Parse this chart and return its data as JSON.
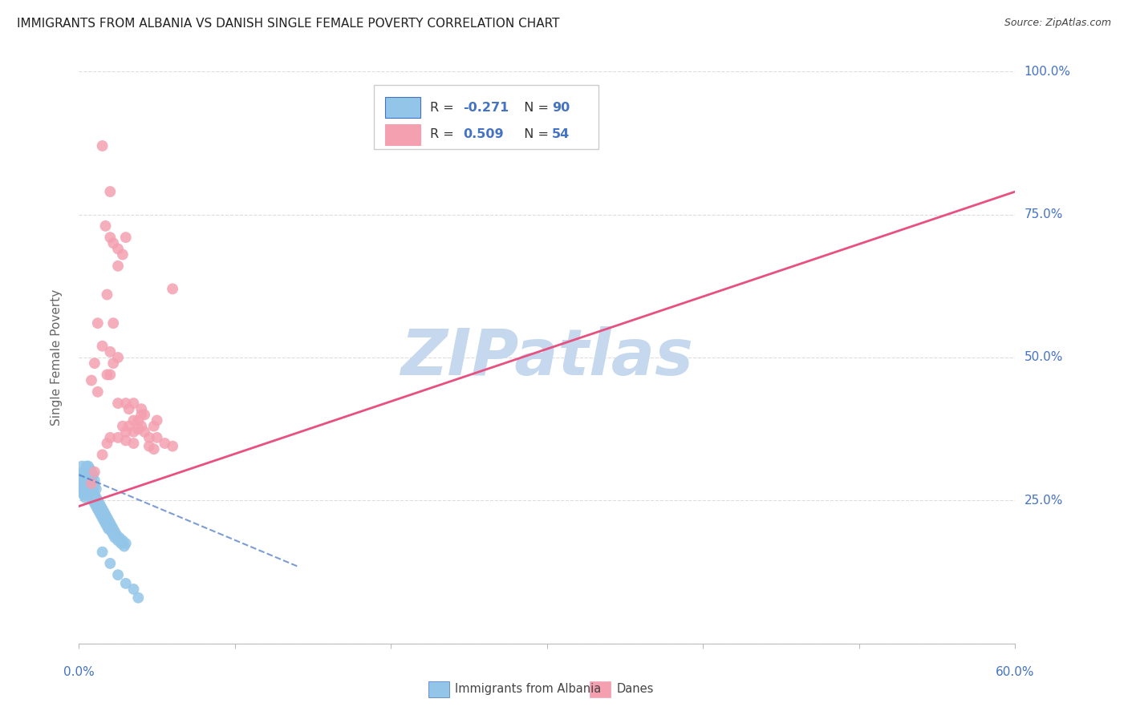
{
  "title": "IMMIGRANTS FROM ALBANIA VS DANISH SINGLE FEMALE POVERTY CORRELATION CHART",
  "source": "Source: ZipAtlas.com",
  "ylabel": "Single Female Poverty",
  "xlim": [
    0.0,
    0.6
  ],
  "ylim": [
    0.0,
    1.0
  ],
  "color_albania": "#92C5E8",
  "color_danes": "#F4A0B0",
  "color_blue": "#4472C4",
  "color_title": "#222222",
  "watermark_color": "#C5D8EE",
  "grid_color": "#DDDDDD",
  "background_color": "#FFFFFF",
  "albania_scatter": [
    [
      0.002,
      0.285
    ],
    [
      0.003,
      0.295
    ],
    [
      0.003,
      0.28
    ],
    [
      0.004,
      0.29
    ],
    [
      0.004,
      0.275
    ],
    [
      0.005,
      0.285
    ],
    [
      0.005,
      0.27
    ],
    [
      0.005,
      0.305
    ],
    [
      0.006,
      0.28
    ],
    [
      0.006,
      0.265
    ],
    [
      0.006,
      0.3
    ],
    [
      0.007,
      0.275
    ],
    [
      0.007,
      0.26
    ],
    [
      0.007,
      0.29
    ],
    [
      0.008,
      0.27
    ],
    [
      0.008,
      0.255
    ],
    [
      0.008,
      0.285
    ],
    [
      0.009,
      0.265
    ],
    [
      0.009,
      0.25
    ],
    [
      0.009,
      0.28
    ],
    [
      0.01,
      0.26
    ],
    [
      0.01,
      0.245
    ],
    [
      0.01,
      0.275
    ],
    [
      0.011,
      0.255
    ],
    [
      0.011,
      0.24
    ],
    [
      0.012,
      0.25
    ],
    [
      0.012,
      0.235
    ],
    [
      0.013,
      0.245
    ],
    [
      0.013,
      0.23
    ],
    [
      0.014,
      0.24
    ],
    [
      0.014,
      0.225
    ],
    [
      0.015,
      0.235
    ],
    [
      0.015,
      0.22
    ],
    [
      0.016,
      0.23
    ],
    [
      0.016,
      0.215
    ],
    [
      0.017,
      0.225
    ],
    [
      0.017,
      0.21
    ],
    [
      0.018,
      0.22
    ],
    [
      0.018,
      0.205
    ],
    [
      0.019,
      0.215
    ],
    [
      0.019,
      0.2
    ],
    [
      0.02,
      0.21
    ],
    [
      0.02,
      0.2
    ],
    [
      0.021,
      0.205
    ],
    [
      0.021,
      0.195
    ],
    [
      0.022,
      0.2
    ],
    [
      0.022,
      0.19
    ],
    [
      0.023,
      0.195
    ],
    [
      0.023,
      0.185
    ],
    [
      0.024,
      0.19
    ],
    [
      0.025,
      0.18
    ],
    [
      0.026,
      0.185
    ],
    [
      0.027,
      0.175
    ],
    [
      0.028,
      0.18
    ],
    [
      0.029,
      0.17
    ],
    [
      0.03,
      0.175
    ],
    [
      0.002,
      0.31
    ],
    [
      0.003,
      0.3
    ],
    [
      0.004,
      0.295
    ],
    [
      0.005,
      0.31
    ],
    [
      0.006,
      0.295
    ],
    [
      0.006,
      0.31
    ],
    [
      0.007,
      0.305
    ],
    [
      0.007,
      0.295
    ],
    [
      0.008,
      0.3
    ],
    [
      0.009,
      0.295
    ],
    [
      0.01,
      0.285
    ],
    [
      0.011,
      0.27
    ],
    [
      0.004,
      0.285
    ],
    [
      0.005,
      0.295
    ],
    [
      0.003,
      0.27
    ],
    [
      0.002,
      0.275
    ],
    [
      0.001,
      0.29
    ],
    [
      0.001,
      0.27
    ],
    [
      0.002,
      0.265
    ],
    [
      0.003,
      0.26
    ],
    [
      0.004,
      0.265
    ],
    [
      0.004,
      0.255
    ],
    [
      0.003,
      0.285
    ],
    [
      0.002,
      0.295
    ],
    [
      0.005,
      0.265
    ],
    [
      0.006,
      0.285
    ],
    [
      0.007,
      0.28
    ],
    [
      0.008,
      0.29
    ],
    [
      0.03,
      0.105
    ],
    [
      0.035,
      0.095
    ],
    [
      0.038,
      0.08
    ],
    [
      0.015,
      0.16
    ],
    [
      0.02,
      0.14
    ],
    [
      0.025,
      0.12
    ]
  ],
  "danes_scatter": [
    [
      0.015,
      0.87
    ],
    [
      0.02,
      0.79
    ],
    [
      0.017,
      0.73
    ],
    [
      0.02,
      0.71
    ],
    [
      0.022,
      0.7
    ],
    [
      0.025,
      0.69
    ],
    [
      0.028,
      0.68
    ],
    [
      0.03,
      0.71
    ],
    [
      0.025,
      0.66
    ],
    [
      0.018,
      0.61
    ],
    [
      0.022,
      0.56
    ],
    [
      0.012,
      0.56
    ],
    [
      0.015,
      0.52
    ],
    [
      0.02,
      0.51
    ],
    [
      0.01,
      0.49
    ],
    [
      0.022,
      0.49
    ],
    [
      0.025,
      0.5
    ],
    [
      0.008,
      0.46
    ],
    [
      0.018,
      0.47
    ],
    [
      0.02,
      0.47
    ],
    [
      0.012,
      0.44
    ],
    [
      0.03,
      0.42
    ],
    [
      0.025,
      0.42
    ],
    [
      0.035,
      0.42
    ],
    [
      0.032,
      0.41
    ],
    [
      0.04,
      0.41
    ],
    [
      0.04,
      0.4
    ],
    [
      0.038,
      0.39
    ],
    [
      0.035,
      0.39
    ],
    [
      0.042,
      0.4
    ],
    [
      0.028,
      0.38
    ],
    [
      0.03,
      0.37
    ],
    [
      0.035,
      0.37
    ],
    [
      0.04,
      0.38
    ],
    [
      0.045,
      0.36
    ],
    [
      0.042,
      0.37
    ],
    [
      0.048,
      0.38
    ],
    [
      0.032,
      0.38
    ],
    [
      0.038,
      0.375
    ],
    [
      0.045,
      0.345
    ],
    [
      0.05,
      0.39
    ],
    [
      0.05,
      0.36
    ],
    [
      0.055,
      0.35
    ],
    [
      0.06,
      0.345
    ],
    [
      0.048,
      0.34
    ],
    [
      0.035,
      0.35
    ],
    [
      0.03,
      0.355
    ],
    [
      0.025,
      0.36
    ],
    [
      0.02,
      0.36
    ],
    [
      0.018,
      0.35
    ],
    [
      0.015,
      0.33
    ],
    [
      0.01,
      0.3
    ],
    [
      0.008,
      0.28
    ],
    [
      0.06,
      0.62
    ]
  ],
  "albania_line_x": [
    0.0,
    0.14
  ],
  "albania_line_y": [
    0.295,
    0.135
  ],
  "danes_line_x": [
    0.0,
    0.6
  ],
  "danes_line_y": [
    0.24,
    0.79
  ]
}
